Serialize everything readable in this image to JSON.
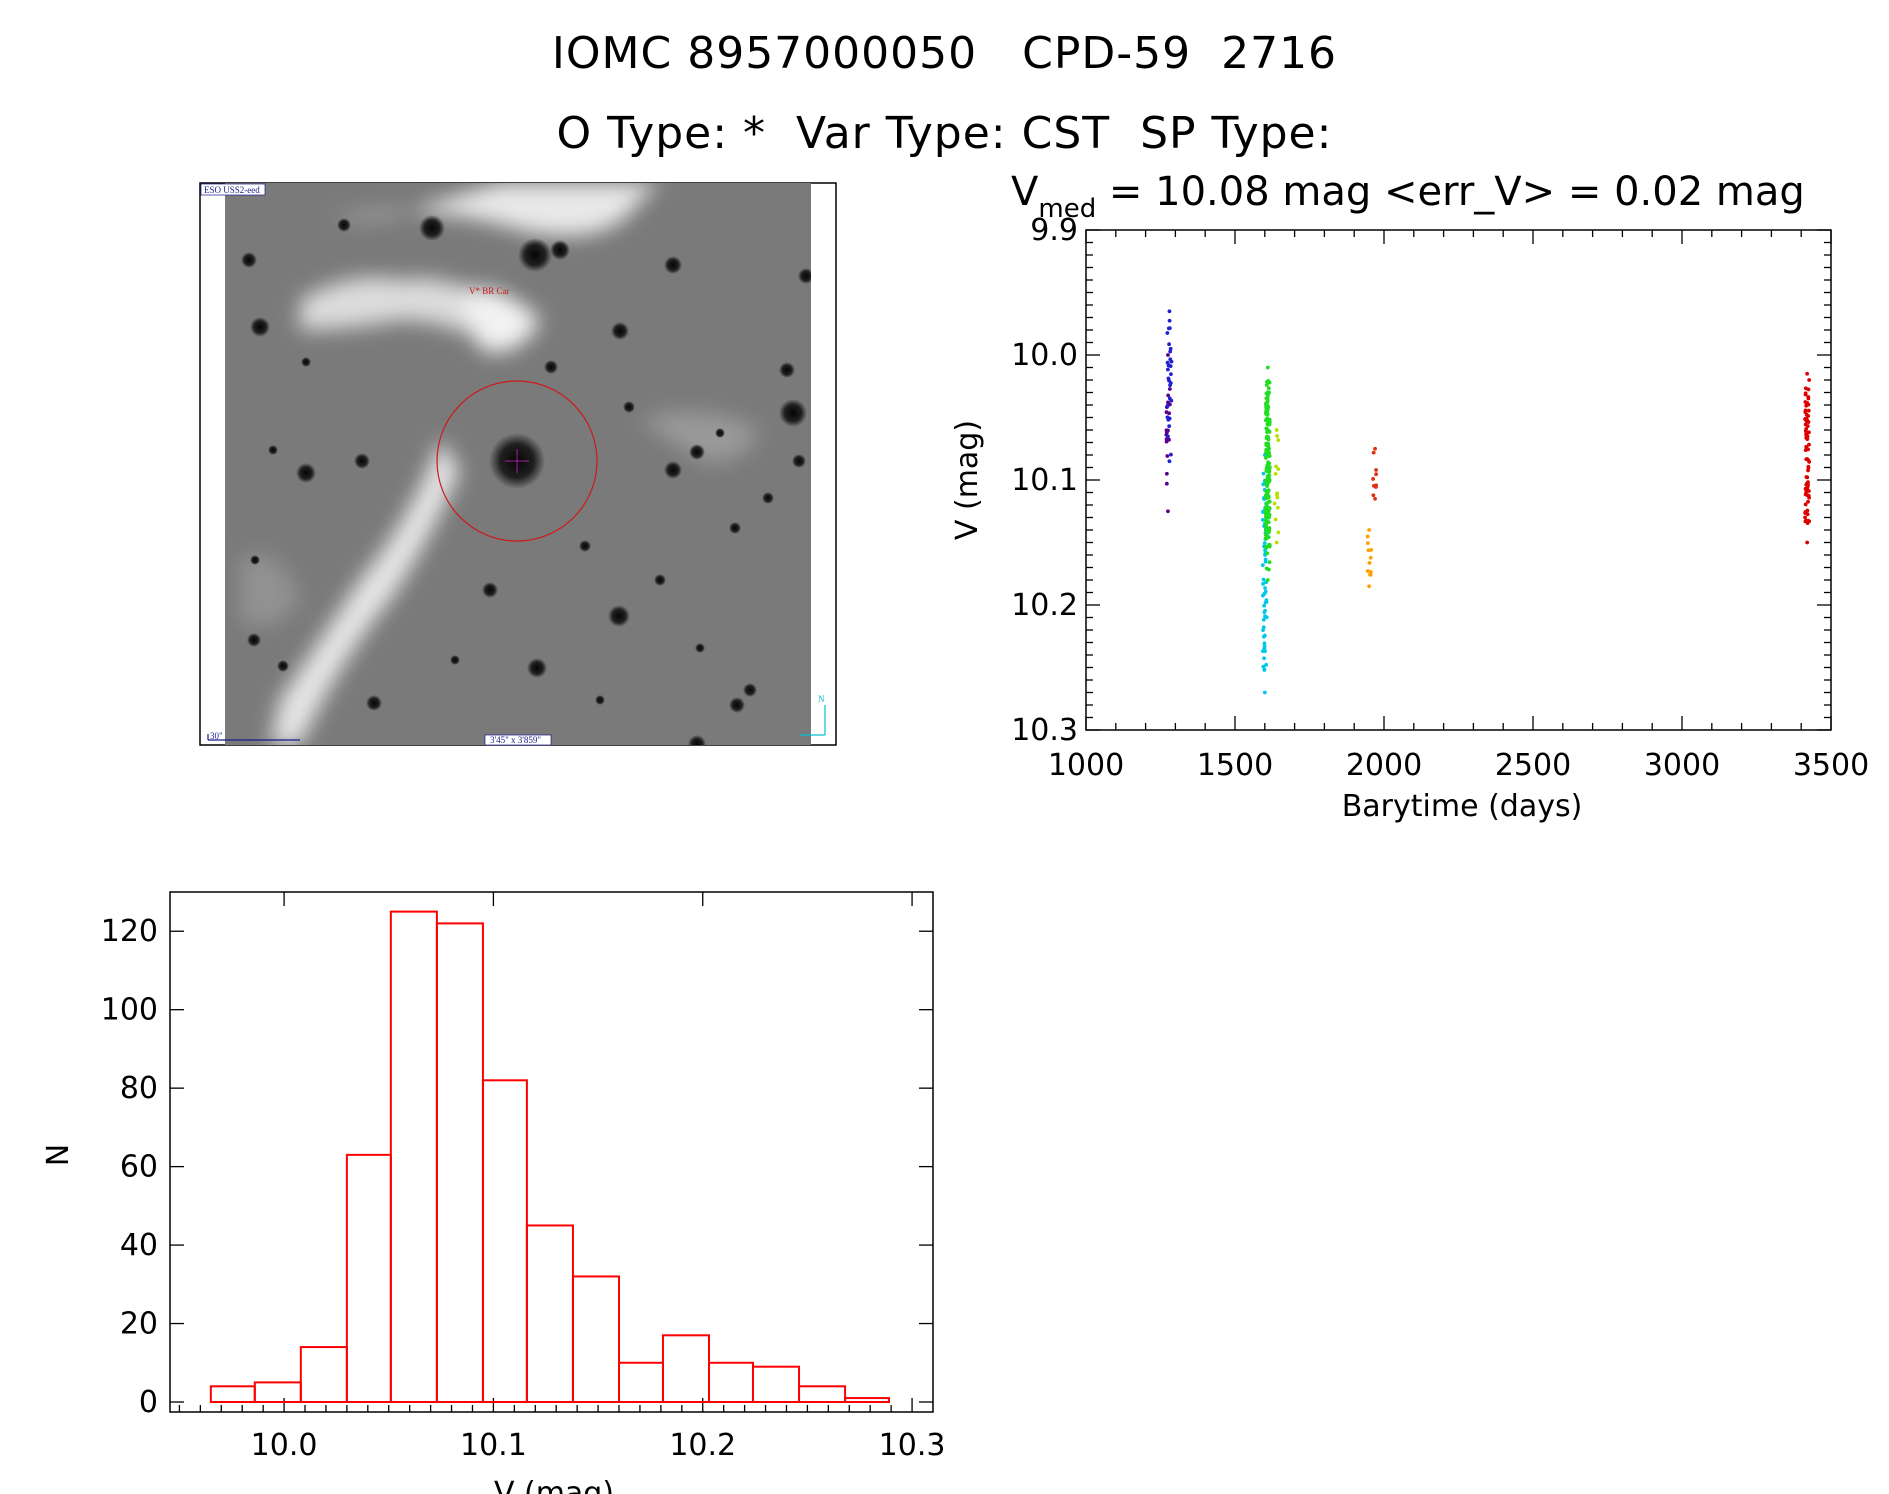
{
  "header": {
    "title_line1": "IOMC 8957000050   CPD-59  2716",
    "title_line2": "O Type: *  Var Type: CST  SP Type:"
  },
  "image_panel": {
    "survey_label": "ESO USS2-eed",
    "object_label": "V* BR Car",
    "scale_label": "30\"",
    "fov_label": "3'45\" x 3'859\"",
    "north_label": "N"
  },
  "light_curve_stats": {
    "v_prefix": "V",
    "v_subscript": "med",
    "stats_text": " = 10.08 mag <err_V> = 0.02 mag"
  },
  "chart_data": [
    {
      "type": "scatter",
      "title": "",
      "xlabel": "Barytime (days)",
      "ylabel": "V (mag)",
      "xlim": [
        1000,
        3500
      ],
      "ylim": [
        10.3,
        9.9
      ],
      "y_inverted": true,
      "xticks": [
        "1000",
        "1500",
        "2000",
        "2500",
        "3000",
        "3500"
      ],
      "yticks": [
        "9.9",
        "10.0",
        "10.1",
        "10.2",
        "10.3"
      ],
      "series": [
        {
          "color": "#5a0090",
          "x": 1275,
          "y_range": [
            10.0,
            10.125
          ],
          "n": 18
        },
        {
          "color": "#2020d0",
          "x": 1280,
          "y_range": [
            9.965,
            10.085
          ],
          "n": 28
        },
        {
          "color": "#00c8e8",
          "x": 1600,
          "y_range": [
            10.08,
            10.27
          ],
          "n": 60
        },
        {
          "color": "#22dd22",
          "x": 1610,
          "y_range": [
            10.01,
            10.18
          ],
          "n": 160
        },
        {
          "color": "#b8e000",
          "x": 1640,
          "y_range": [
            10.06,
            10.15
          ],
          "n": 12
        },
        {
          "color": "#ffa000",
          "x": 1950,
          "y_range": [
            10.14,
            10.185
          ],
          "n": 10
        },
        {
          "color": "#e03010",
          "x": 1970,
          "y_range": [
            10.075,
            10.115
          ],
          "n": 8
        },
        {
          "color": "#dd0000",
          "x": 3420,
          "y_range": [
            10.015,
            10.15
          ],
          "n": 75
        }
      ]
    },
    {
      "type": "bar",
      "title": "",
      "xlabel": "V (mag)",
      "ylabel": "N",
      "xlim": [
        9.96,
        10.3
      ],
      "ylim": [
        0,
        130
      ],
      "xticks": [
        "10.0",
        "10.1",
        "10.2",
        "10.3"
      ],
      "yticks": [
        "0",
        "20",
        "40",
        "60",
        "80",
        "100",
        "120"
      ],
      "bin_edges": [
        9.965,
        9.986,
        10.008,
        10.03,
        10.051,
        10.073,
        10.095,
        10.116,
        10.138,
        10.16,
        10.181,
        10.203,
        10.224,
        10.246,
        10.268,
        10.289
      ],
      "values": [
        4,
        5,
        14,
        63,
        125,
        122,
        82,
        45,
        32,
        10,
        17,
        10,
        9,
        4,
        1
      ],
      "color": "#ff0000"
    }
  ]
}
